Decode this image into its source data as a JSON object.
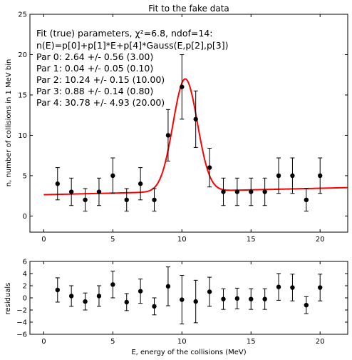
{
  "chart_data": [
    {
      "type": "scatter",
      "title": "Fit to the fake data",
      "xlabel": "",
      "ylabel": "n, number of collisions in 1 MeV bin",
      "xlim": [
        -1,
        22
      ],
      "ylim": [
        -2,
        25
      ],
      "xticks": [
        "0",
        "5",
        "10",
        "15",
        "20"
      ],
      "yticks": [
        "0",
        "5",
        "10",
        "15",
        "20",
        "25"
      ],
      "annotation_lines": [
        "Fit (true) parameters, χ²=6.8, ndof=14:",
        "n(E)=p[0]+p[1]*E+p[4]*Gauss(E,p[2],p[3])",
        "Par 0: 2.64 +/- 0.56 (3.00)",
        "Par 1: 0.04 +/- 0.05 (0.10)",
        "Par 2: 10.24 +/- 0.15 (10.00)",
        "Par 3: 0.88 +/- 0.14 (0.80)",
        "Par 4: 30.78 +/- 4.93 (20.00)"
      ],
      "points": {
        "color": "#000000",
        "x": [
          1,
          2,
          3,
          4,
          5,
          6,
          7,
          8,
          9,
          10,
          11,
          12,
          13,
          14,
          15,
          16,
          17,
          18,
          19,
          20
        ],
        "y": [
          4,
          3,
          2,
          3,
          5,
          2,
          4,
          2,
          10,
          16,
          12,
          6,
          3,
          3,
          3,
          3,
          5,
          5,
          2,
          5
        ],
        "yerr_low": [
          2.0,
          1.7,
          1.4,
          1.7,
          2.2,
          1.4,
          2.0,
          1.4,
          3.2,
          4.0,
          3.5,
          2.4,
          1.7,
          1.7,
          1.7,
          1.7,
          2.2,
          2.2,
          1.4,
          2.2
        ],
        "yerr_high": [
          2.0,
          1.7,
          1.4,
          1.7,
          2.2,
          1.4,
          2.0,
          1.4,
          3.2,
          4.0,
          3.5,
          2.4,
          1.7,
          1.7,
          1.7,
          1.7,
          2.2,
          2.2,
          1.4,
          2.2
        ]
      },
      "fit": {
        "color": "#ff0000",
        "p": [
          2.64,
          0.04,
          10.24,
          0.88,
          30.78
        ],
        "xrange": [
          0,
          22
        ]
      }
    },
    {
      "type": "scatter",
      "title": "",
      "xlabel": "E, energy of the collisions (MeV)",
      "ylabel": "residuals",
      "xlim": [
        -1,
        22
      ],
      "ylim": [
        -6,
        6
      ],
      "xticks": [
        "0",
        "5",
        "10",
        "15",
        "20"
      ],
      "yticks": [
        "−6",
        "−4",
        "−2",
        "0",
        "2",
        "4",
        "6"
      ],
      "points": {
        "color": "#000000",
        "x": [
          1,
          2,
          3,
          4,
          5,
          6,
          7,
          8,
          9,
          10,
          11,
          12,
          13,
          14,
          15,
          16,
          17,
          18,
          19,
          20
        ],
        "y": [
          1.3,
          0.3,
          -0.6,
          0.3,
          2.2,
          -0.7,
          1.1,
          -1.4,
          1.9,
          -0.3,
          -0.6,
          1.0,
          -0.2,
          -0.1,
          -0.2,
          -0.2,
          1.8,
          1.7,
          -1.2,
          1.7
        ],
        "yerr_low": [
          2.0,
          1.7,
          1.4,
          1.7,
          2.2,
          1.4,
          2.0,
          1.4,
          3.2,
          4.0,
          3.5,
          2.4,
          1.7,
          1.7,
          1.7,
          1.7,
          2.2,
          2.2,
          1.4,
          2.2
        ],
        "yerr_high": [
          2.0,
          1.7,
          1.4,
          1.7,
          2.2,
          1.4,
          2.0,
          1.4,
          3.2,
          4.0,
          3.5,
          2.4,
          1.7,
          1.7,
          1.7,
          1.7,
          2.2,
          2.2,
          1.4,
          2.2
        ]
      }
    }
  ]
}
